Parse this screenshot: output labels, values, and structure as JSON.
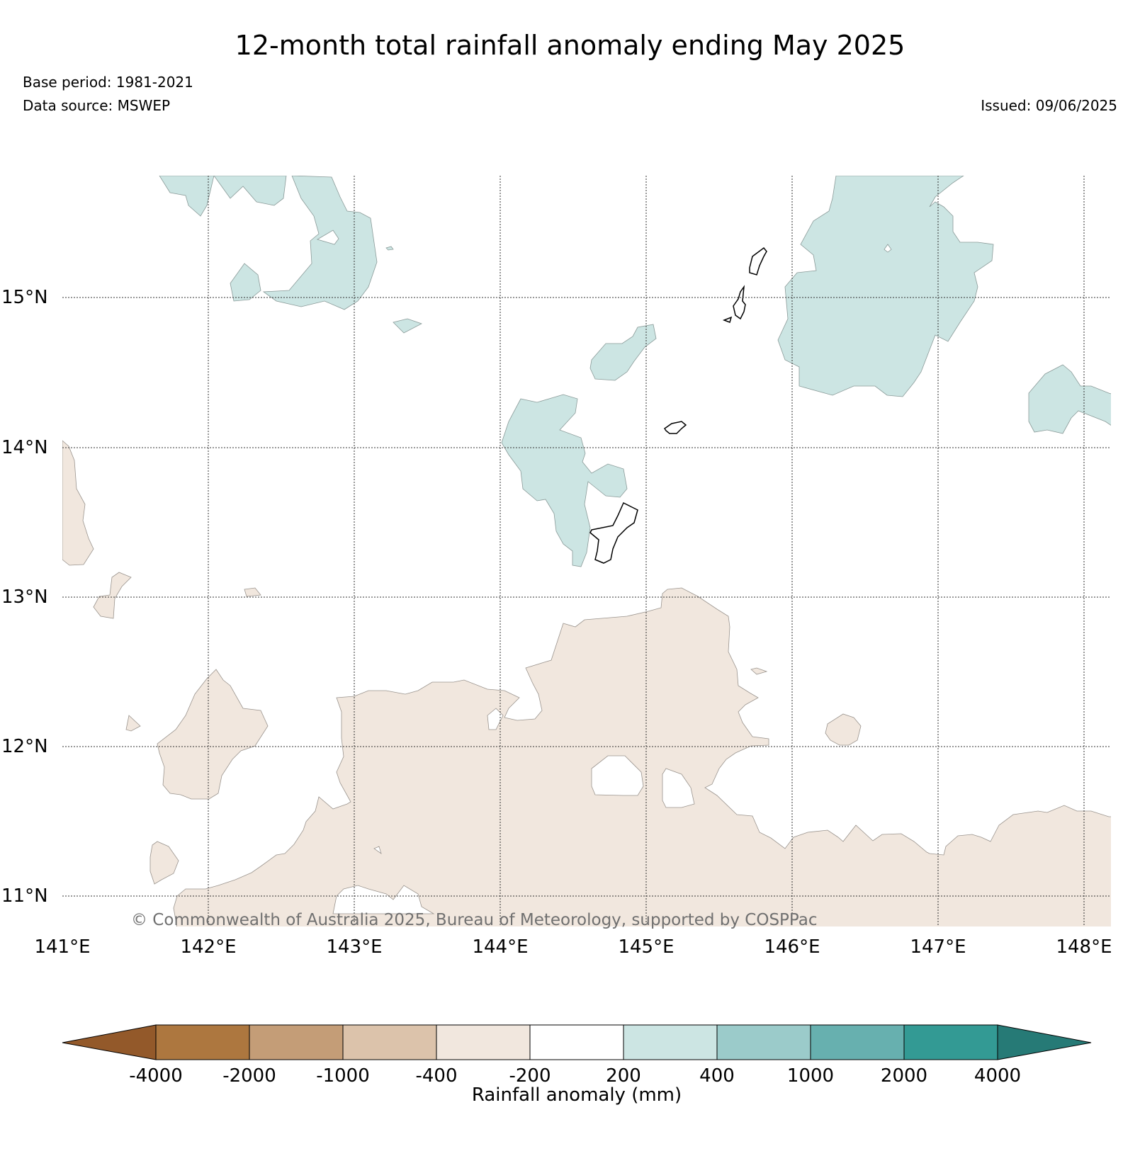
{
  "header": {
    "title": "12-month total rainfall anomaly ending May 2025",
    "base_period": "Base period: 1981-2021",
    "data_source": "Data source: MSWEP",
    "issued": "Issued: 09/06/2025"
  },
  "map": {
    "lat_labels": [
      "15°N",
      "14°N",
      "13°N",
      "12°N",
      "11°N"
    ],
    "lon_labels": [
      "141°E",
      "142°E",
      "143°E",
      "144°E",
      "145°E",
      "146°E",
      "147°E",
      "148°E"
    ],
    "copyright": "© Commonwealth of Australia 2025, Bureau of Meteorology, supported by COSPPac",
    "colors": {
      "dry_light": "#f1e7de",
      "wet_light": "#cce5e3",
      "grid": "#333333",
      "coast": "#000000"
    }
  },
  "colorbar": {
    "title": "Rainfall anomaly (mm)",
    "ticks": [
      "-4000",
      "-2000",
      "-1000",
      "-400",
      "-200",
      "200",
      "400",
      "1000",
      "2000",
      "4000"
    ],
    "colors": [
      "#93592a",
      "#ad773f",
      "#c49d77",
      "#dcc3ab",
      "#f1e7de",
      "#ffffff",
      "#cce5e3",
      "#9bcbca",
      "#67b0af",
      "#339a94",
      "#267a76"
    ]
  }
}
